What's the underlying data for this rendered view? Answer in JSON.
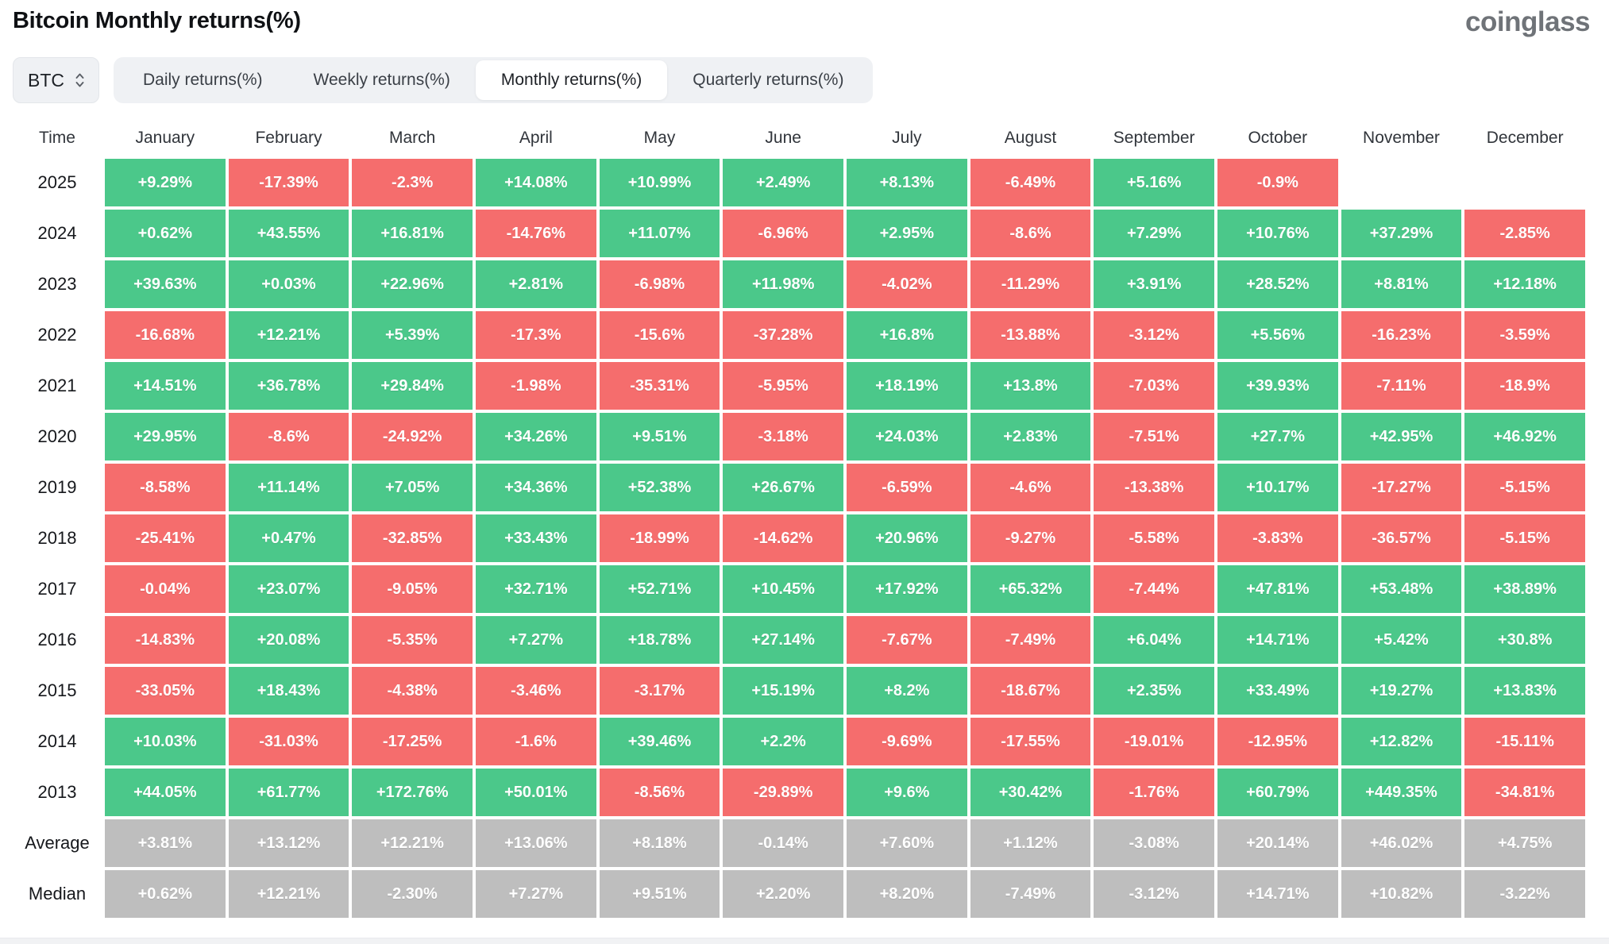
{
  "header": {
    "title": "Bitcoin Monthly returns(%)",
    "logo": "coinglass"
  },
  "controls": {
    "coin_selector": {
      "value": "BTC"
    },
    "tabs": [
      {
        "label": "Daily returns(%)",
        "active": false
      },
      {
        "label": "Weekly returns(%)",
        "active": false
      },
      {
        "label": "Monthly returns(%)",
        "active": true
      },
      {
        "label": "Quarterly returns(%)",
        "active": false
      }
    ]
  },
  "colors": {
    "positive": "#4bc88a",
    "negative": "#f56d6d",
    "neutral": "#bebebe"
  },
  "chart_data": {
    "type": "heatmap",
    "title": "Bitcoin Monthly returns(%)",
    "row_header": "Time",
    "columns": [
      "January",
      "February",
      "March",
      "April",
      "May",
      "June",
      "July",
      "August",
      "September",
      "October",
      "November",
      "December"
    ],
    "rows": [
      {
        "label": "2025",
        "kind": "year",
        "values": [
          "+9.29%",
          "-17.39%",
          "-2.3%",
          "+14.08%",
          "+10.99%",
          "+2.49%",
          "+8.13%",
          "-6.49%",
          "+5.16%",
          "-0.9%",
          "",
          ""
        ]
      },
      {
        "label": "2024",
        "kind": "year",
        "values": [
          "+0.62%",
          "+43.55%",
          "+16.81%",
          "-14.76%",
          "+11.07%",
          "-6.96%",
          "+2.95%",
          "-8.6%",
          "+7.29%",
          "+10.76%",
          "+37.29%",
          "-2.85%"
        ]
      },
      {
        "label": "2023",
        "kind": "year",
        "values": [
          "+39.63%",
          "+0.03%",
          "+22.96%",
          "+2.81%",
          "-6.98%",
          "+11.98%",
          "-4.02%",
          "-11.29%",
          "+3.91%",
          "+28.52%",
          "+8.81%",
          "+12.18%"
        ]
      },
      {
        "label": "2022",
        "kind": "year",
        "values": [
          "-16.68%",
          "+12.21%",
          "+5.39%",
          "-17.3%",
          "-15.6%",
          "-37.28%",
          "+16.8%",
          "-13.88%",
          "-3.12%",
          "+5.56%",
          "-16.23%",
          "-3.59%"
        ]
      },
      {
        "label": "2021",
        "kind": "year",
        "values": [
          "+14.51%",
          "+36.78%",
          "+29.84%",
          "-1.98%",
          "-35.31%",
          "-5.95%",
          "+18.19%",
          "+13.8%",
          "-7.03%",
          "+39.93%",
          "-7.11%",
          "-18.9%"
        ]
      },
      {
        "label": "2020",
        "kind": "year",
        "values": [
          "+29.95%",
          "-8.6%",
          "-24.92%",
          "+34.26%",
          "+9.51%",
          "-3.18%",
          "+24.03%",
          "+2.83%",
          "-7.51%",
          "+27.7%",
          "+42.95%",
          "+46.92%"
        ]
      },
      {
        "label": "2019",
        "kind": "year",
        "values": [
          "-8.58%",
          "+11.14%",
          "+7.05%",
          "+34.36%",
          "+52.38%",
          "+26.67%",
          "-6.59%",
          "-4.6%",
          "-13.38%",
          "+10.17%",
          "-17.27%",
          "-5.15%"
        ]
      },
      {
        "label": "2018",
        "kind": "year",
        "values": [
          "-25.41%",
          "+0.47%",
          "-32.85%",
          "+33.43%",
          "-18.99%",
          "-14.62%",
          "+20.96%",
          "-9.27%",
          "-5.58%",
          "-3.83%",
          "-36.57%",
          "-5.15%"
        ]
      },
      {
        "label": "2017",
        "kind": "year",
        "values": [
          "-0.04%",
          "+23.07%",
          "-9.05%",
          "+32.71%",
          "+52.71%",
          "+10.45%",
          "+17.92%",
          "+65.32%",
          "-7.44%",
          "+47.81%",
          "+53.48%",
          "+38.89%"
        ]
      },
      {
        "label": "2016",
        "kind": "year",
        "values": [
          "-14.83%",
          "+20.08%",
          "-5.35%",
          "+7.27%",
          "+18.78%",
          "+27.14%",
          "-7.67%",
          "-7.49%",
          "+6.04%",
          "+14.71%",
          "+5.42%",
          "+30.8%"
        ]
      },
      {
        "label": "2015",
        "kind": "year",
        "values": [
          "-33.05%",
          "+18.43%",
          "-4.38%",
          "-3.46%",
          "-3.17%",
          "+15.19%",
          "+8.2%",
          "-18.67%",
          "+2.35%",
          "+33.49%",
          "+19.27%",
          "+13.83%"
        ]
      },
      {
        "label": "2014",
        "kind": "year",
        "values": [
          "+10.03%",
          "-31.03%",
          "-17.25%",
          "-1.6%",
          "+39.46%",
          "+2.2%",
          "-9.69%",
          "-17.55%",
          "-19.01%",
          "-12.95%",
          "+12.82%",
          "-15.11%"
        ]
      },
      {
        "label": "2013",
        "kind": "year",
        "values": [
          "+44.05%",
          "+61.77%",
          "+172.76%",
          "+50.01%",
          "-8.56%",
          "-29.89%",
          "+9.6%",
          "+30.42%",
          "-1.76%",
          "+60.79%",
          "+449.35%",
          "-34.81%"
        ]
      },
      {
        "label": "Average",
        "kind": "summary",
        "values": [
          "+3.81%",
          "+13.12%",
          "+12.21%",
          "+13.06%",
          "+8.18%",
          "-0.14%",
          "+7.60%",
          "+1.12%",
          "-3.08%",
          "+20.14%",
          "+46.02%",
          "+4.75%"
        ]
      },
      {
        "label": "Median",
        "kind": "summary",
        "values": [
          "+0.62%",
          "+12.21%",
          "-2.30%",
          "+7.27%",
          "+9.51%",
          "+2.20%",
          "+8.20%",
          "-7.49%",
          "-3.12%",
          "+14.71%",
          "+10.82%",
          "-3.22%"
        ]
      }
    ]
  }
}
